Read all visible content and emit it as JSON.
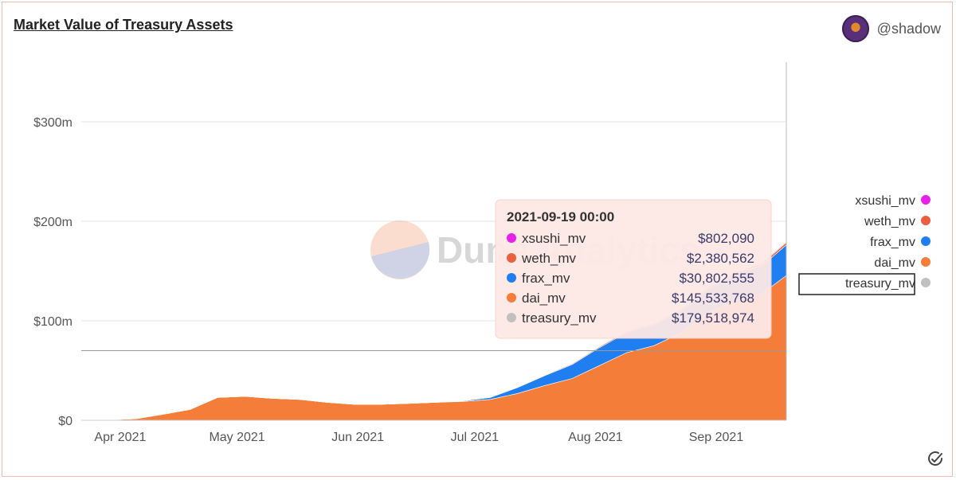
{
  "title": "Market Value of Treasury Assets",
  "author": "@shadow",
  "watermark": "Dune Analytics",
  "tooltip": {
    "date": "2021-09-19 00:00",
    "rows": [
      {
        "name": "xsushi_mv",
        "value": "$802,090",
        "color": "#e820e8"
      },
      {
        "name": "weth_mv",
        "value": "$2,380,562",
        "color": "#e8603f"
      },
      {
        "name": "frax_mv",
        "value": "$30,802,555",
        "color": "#1f7ff0"
      },
      {
        "name": "dai_mv",
        "value": "$145,533,768",
        "color": "#f47d3a"
      },
      {
        "name": "treasury_mv",
        "value": "$179,518,974",
        "color": "#c0c0c0"
      }
    ]
  },
  "chart_data": {
    "type": "area",
    "stacked": true,
    "x_tick_labels": [
      "Apr 2021",
      "May 2021",
      "Jun 2021",
      "Jul 2021",
      "Aug 2021",
      "Sep 2021"
    ],
    "y_tick_labels": [
      "$0",
      "$100m",
      "$200m",
      "$300m"
    ],
    "ylim": [
      0,
      360
    ],
    "y_unit": "millions USD",
    "grid": true,
    "legend_position": "right",
    "x": [
      "2021-03-22",
      "2021-03-29",
      "2021-04-05",
      "2021-04-12",
      "2021-04-19",
      "2021-04-26",
      "2021-05-03",
      "2021-05-10",
      "2021-05-17",
      "2021-05-24",
      "2021-05-31",
      "2021-06-07",
      "2021-06-14",
      "2021-06-21",
      "2021-06-28",
      "2021-07-05",
      "2021-07-12",
      "2021-07-19",
      "2021-07-26",
      "2021-08-02",
      "2021-08-09",
      "2021-08-16",
      "2021-08-23",
      "2021-08-30",
      "2021-09-06",
      "2021-09-13",
      "2021-09-19"
    ],
    "series": [
      {
        "name": "dai_mv",
        "color": "#f47d3a",
        "values": [
          0.3,
          0.5,
          1.5,
          6,
          11,
          23,
          24,
          22,
          21,
          18,
          16,
          16,
          17,
          18,
          19,
          21,
          27,
          35,
          42,
          55,
          68,
          75,
          88,
          108,
          120,
          128,
          145.5
        ]
      },
      {
        "name": "frax_mv",
        "color": "#1f7ff0",
        "values": [
          0,
          0,
          0,
          0,
          0,
          0,
          0,
          0,
          0,
          0,
          0,
          0,
          0,
          0,
          0.5,
          2,
          6,
          10,
          14,
          18,
          20,
          21,
          22,
          24,
          26,
          28,
          30.8
        ]
      },
      {
        "name": "weth_mv",
        "color": "#e8603f",
        "values": [
          0,
          0,
          0,
          0,
          0,
          0,
          0,
          0,
          0,
          0,
          0,
          0,
          0,
          0,
          0,
          0.2,
          0.4,
          0.6,
          0.8,
          1,
          1.2,
          1.4,
          1.6,
          1.8,
          2,
          2.2,
          2.38
        ]
      },
      {
        "name": "xsushi_mv",
        "color": "#e820e8",
        "values": [
          0,
          0,
          0,
          0,
          0,
          0,
          0,
          0,
          0,
          0,
          0,
          0,
          0,
          0,
          0,
          0.1,
          0.2,
          0.3,
          0.4,
          0.5,
          0.5,
          0.6,
          0.6,
          0.7,
          0.7,
          0.8,
          0.8
        ]
      }
    ],
    "legend": [
      {
        "name": "xsushi_mv",
        "color": "#e820e8"
      },
      {
        "name": "weth_mv",
        "color": "#e8603f"
      },
      {
        "name": "frax_mv",
        "color": "#1f7ff0"
      },
      {
        "name": "dai_mv",
        "color": "#f47d3a"
      },
      {
        "name": "treasury_mv",
        "color": "#c0c0c0"
      }
    ],
    "hover_date": "2021-09-19",
    "hover_total": 179.5
  }
}
